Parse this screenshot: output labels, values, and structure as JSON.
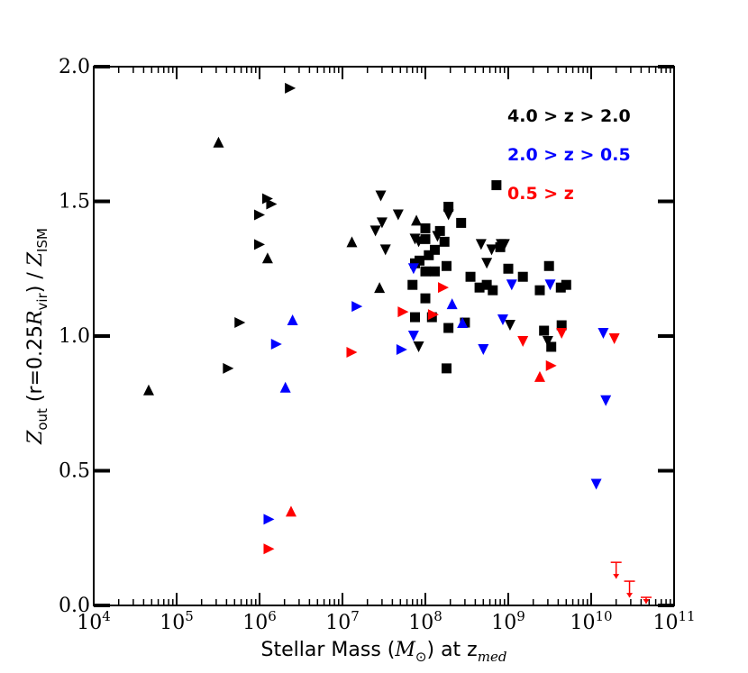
{
  "chart_data": {
    "type": "scatter",
    "xscale": "log",
    "xlim": [
      10000,
      100000000000
    ],
    "ylim": [
      0.0,
      2.0
    ],
    "xlabel": {
      "prefix": "Stellar Mass (",
      "math": "M",
      "sub": "⊙",
      "suffix": ") at z",
      "zsub": "med"
    },
    "ylabel": {
      "z_out": "Z",
      "out_sub": "out",
      "mid": " (r=0.25",
      "R": "R",
      "vir_sub": "vir",
      "close": ") / ",
      "z_ism": "Z",
      "ism_sub": "ISM"
    },
    "x_ticks": [
      {
        "value": 10000,
        "base": "10",
        "exp": "4"
      },
      {
        "value": 100000,
        "base": "10",
        "exp": "5"
      },
      {
        "value": 1000000,
        "base": "10",
        "exp": "6"
      },
      {
        "value": 10000000,
        "base": "10",
        "exp": "7"
      },
      {
        "value": 100000000,
        "base": "10",
        "exp": "8"
      },
      {
        "value": 1000000000,
        "base": "10",
        "exp": "9"
      },
      {
        "value": 10000000000,
        "base": "10",
        "exp": "10"
      },
      {
        "value": 100000000000,
        "base": "10",
        "exp": "11"
      }
    ],
    "y_ticks": [
      {
        "value": 0.0,
        "label": "0.0"
      },
      {
        "value": 0.5,
        "label": "0.5"
      },
      {
        "value": 1.0,
        "label": "1.0"
      },
      {
        "value": 1.5,
        "label": "1.5"
      },
      {
        "value": 2.0,
        "label": "2.0"
      }
    ],
    "legend": {
      "placement": "top-right",
      "entries": [
        {
          "label": "4.0 > z > 2.0",
          "color": "#000000"
        },
        {
          "label": "2.0 > z > 0.5",
          "color": "#0000ff"
        },
        {
          "label": "0.5 > z",
          "color": "#ff0000"
        }
      ]
    },
    "marker_legend": {
      "s": "square",
      "d": "triangle-down",
      "u": "triangle-up",
      "r": "triangle-right"
    },
    "series": [
      {
        "label": "4.0 > z > 2.0",
        "color": "#000000",
        "points": [
          {
            "m": "s",
            "x": 720000000.0,
            "y": 1.56
          },
          {
            "m": "s",
            "x": 190000000.0,
            "y": 1.48
          },
          {
            "m": "s",
            "x": 270000000.0,
            "y": 1.42
          },
          {
            "m": "s",
            "x": 100000000.0,
            "y": 1.4
          },
          {
            "m": "s",
            "x": 150000000.0,
            "y": 1.39
          },
          {
            "m": "s",
            "x": 100000000.0,
            "y": 1.36
          },
          {
            "m": "s",
            "x": 130000000.0,
            "y": 1.32
          },
          {
            "m": "s",
            "x": 170000000.0,
            "y": 1.35
          },
          {
            "m": "s",
            "x": 800000000.0,
            "y": 1.33
          },
          {
            "m": "s",
            "x": 110000000.0,
            "y": 1.3
          },
          {
            "m": "s",
            "x": 85000000.0,
            "y": 1.28
          },
          {
            "m": "s",
            "x": 75000000.0,
            "y": 1.27
          },
          {
            "m": "s",
            "x": 100000000.0,
            "y": 1.24
          },
          {
            "m": "s",
            "x": 130000000.0,
            "y": 1.24
          },
          {
            "m": "s",
            "x": 180000000.0,
            "y": 1.26
          },
          {
            "m": "s",
            "x": 350000000.0,
            "y": 1.22
          },
          {
            "m": "s",
            "x": 1000000000.0,
            "y": 1.25
          },
          {
            "m": "s",
            "x": 1500000000.0,
            "y": 1.22
          },
          {
            "m": "s",
            "x": 3100000000.0,
            "y": 1.26
          },
          {
            "m": "s",
            "x": 70000000.0,
            "y": 1.19
          },
          {
            "m": "s",
            "x": 450000000.0,
            "y": 1.18
          },
          {
            "m": "s",
            "x": 550000000.0,
            "y": 1.19
          },
          {
            "m": "s",
            "x": 650000000.0,
            "y": 1.17
          },
          {
            "m": "s",
            "x": 2400000000.0,
            "y": 1.17
          },
          {
            "m": "s",
            "x": 4300000000.0,
            "y": 1.18
          },
          {
            "m": "s",
            "x": 5000000000.0,
            "y": 1.19
          },
          {
            "m": "s",
            "x": 100000000.0,
            "y": 1.14
          },
          {
            "m": "s",
            "x": 75000000.0,
            "y": 1.07
          },
          {
            "m": "s",
            "x": 120000000.0,
            "y": 1.07
          },
          {
            "m": "s",
            "x": 190000000.0,
            "y": 1.03
          },
          {
            "m": "s",
            "x": 300000000.0,
            "y": 1.05
          },
          {
            "m": "s",
            "x": 2700000000.0,
            "y": 1.02
          },
          {
            "m": "s",
            "x": 4400000000.0,
            "y": 1.04
          },
          {
            "m": "s",
            "x": 3300000000.0,
            "y": 0.96
          },
          {
            "m": "s",
            "x": 180000000.0,
            "y": 0.88
          },
          {
            "m": "d",
            "x": 29000000.0,
            "y": 1.52
          },
          {
            "m": "d",
            "x": 47000000.0,
            "y": 1.45
          },
          {
            "m": "d",
            "x": 30000000.0,
            "y": 1.42
          },
          {
            "m": "d",
            "x": 190000000.0,
            "y": 1.45
          },
          {
            "m": "d",
            "x": 25000000.0,
            "y": 1.39
          },
          {
            "m": "d",
            "x": 75000000.0,
            "y": 1.36
          },
          {
            "m": "d",
            "x": 83000000.0,
            "y": 1.35
          },
          {
            "m": "d",
            "x": 140000000.0,
            "y": 1.37
          },
          {
            "m": "d",
            "x": 33000000.0,
            "y": 1.32
          },
          {
            "m": "d",
            "x": 470000000.0,
            "y": 1.34
          },
          {
            "m": "d",
            "x": 630000000.0,
            "y": 1.32
          },
          {
            "m": "d",
            "x": 820000000.0,
            "y": 1.34
          },
          {
            "m": "d",
            "x": 900000000.0,
            "y": 1.34
          },
          {
            "m": "d",
            "x": 550000000.0,
            "y": 1.27
          },
          {
            "m": "d",
            "x": 1050000000.0,
            "y": 1.04
          },
          {
            "m": "d",
            "x": 83000000.0,
            "y": 0.96
          },
          {
            "m": "d",
            "x": 3000000000.0,
            "y": 0.98
          },
          {
            "m": "u",
            "x": 320000.0,
            "y": 1.72
          },
          {
            "m": "u",
            "x": 13000000.0,
            "y": 1.35
          },
          {
            "m": "u",
            "x": 78000000.0,
            "y": 1.43
          },
          {
            "m": "u",
            "x": 1250000.0,
            "y": 1.29
          },
          {
            "m": "u",
            "x": 28000000.0,
            "y": 1.18
          },
          {
            "m": "u",
            "x": 46000.0,
            "y": 0.8
          },
          {
            "m": "r",
            "x": 2350000.0,
            "y": 1.92
          },
          {
            "m": "r",
            "x": 1250000.0,
            "y": 1.51
          },
          {
            "m": "r",
            "x": 1400000.0,
            "y": 1.49
          },
          {
            "m": "r",
            "x": 1000000.0,
            "y": 1.45
          },
          {
            "m": "r",
            "x": 1000000.0,
            "y": 1.34
          },
          {
            "m": "r",
            "x": 580000.0,
            "y": 1.05
          },
          {
            "m": "r",
            "x": 420000.0,
            "y": 0.88
          }
        ]
      },
      {
        "label": "2.0 > z > 0.5",
        "color": "#0000ff",
        "points": [
          {
            "m": "d",
            "x": 72000000.0,
            "y": 1.25
          },
          {
            "m": "d",
            "x": 1100000000.0,
            "y": 1.19
          },
          {
            "m": "d",
            "x": 3200000000.0,
            "y": 1.19
          },
          {
            "m": "d",
            "x": 72000000.0,
            "y": 1.0
          },
          {
            "m": "d",
            "x": 860000000.0,
            "y": 1.06
          },
          {
            "m": "d",
            "x": 500000000.0,
            "y": 0.95
          },
          {
            "m": "d",
            "x": 14000000000.0,
            "y": 1.01
          },
          {
            "m": "d",
            "x": 15000000000.0,
            "y": 0.76
          },
          {
            "m": "d",
            "x": 11500000000.0,
            "y": 0.45
          },
          {
            "m": "u",
            "x": 210000000.0,
            "y": 1.12
          },
          {
            "m": "u",
            "x": 2500000.0,
            "y": 1.06
          },
          {
            "m": "u",
            "x": 2050000.0,
            "y": 0.81
          },
          {
            "m": "u",
            "x": 280000000.0,
            "y": 1.05
          },
          {
            "m": "r",
            "x": 15000000.0,
            "y": 1.11
          },
          {
            "m": "r",
            "x": 52000000.0,
            "y": 0.95
          },
          {
            "m": "r",
            "x": 1600000.0,
            "y": 0.97
          },
          {
            "m": "r",
            "x": 1300000.0,
            "y": 0.32
          }
        ]
      },
      {
        "label": "0.5 > z",
        "color": "#ff0000",
        "points": [
          {
            "m": "d",
            "x": 19000000000.0,
            "y": 0.99
          },
          {
            "m": "d",
            "x": 4400000000.0,
            "y": 1.01
          },
          {
            "m": "d",
            "x": 1500000000.0,
            "y": 0.98
          },
          {
            "m": "u",
            "x": 2400000000.0,
            "y": 0.85
          },
          {
            "m": "u",
            "x": 2400000.0,
            "y": 0.35
          },
          {
            "m": "r",
            "x": 165000000.0,
            "y": 1.18
          },
          {
            "m": "r",
            "x": 54000000.0,
            "y": 1.09
          },
          {
            "m": "r",
            "x": 125000000.0,
            "y": 1.08
          },
          {
            "m": "r",
            "x": 13000000.0,
            "y": 0.94
          },
          {
            "m": "r",
            "x": 3300000000.0,
            "y": 0.89
          },
          {
            "m": "r",
            "x": 1300000.0,
            "y": 0.21
          }
        ],
        "upper_limits": [
          {
            "x": 20000000000.0,
            "y": 0.16
          },
          {
            "x": 29000000000.0,
            "y": 0.09
          },
          {
            "x": 46000000000.0,
            "y": 0.03
          }
        ]
      }
    ]
  }
}
